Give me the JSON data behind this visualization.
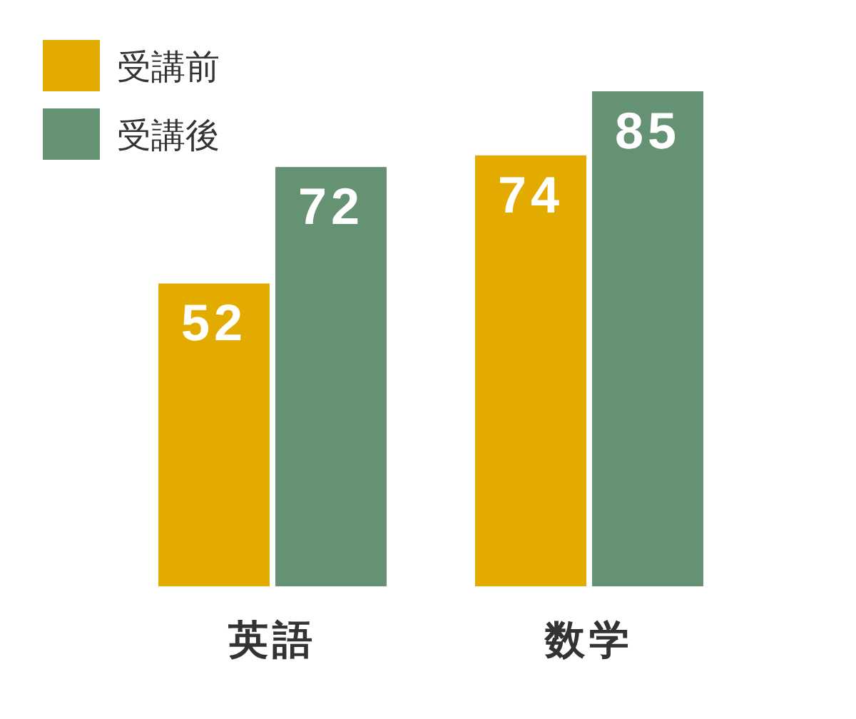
{
  "chart_data": {
    "type": "bar",
    "categories": [
      "英語",
      "数学"
    ],
    "series": [
      {
        "name": "受講前",
        "color": "#e3aa00",
        "values": [
          52,
          74
        ]
      },
      {
        "name": "受講後",
        "color": "#659273",
        "values": [
          72,
          85
        ]
      }
    ],
    "data_labels": true,
    "legend": "top left"
  }
}
